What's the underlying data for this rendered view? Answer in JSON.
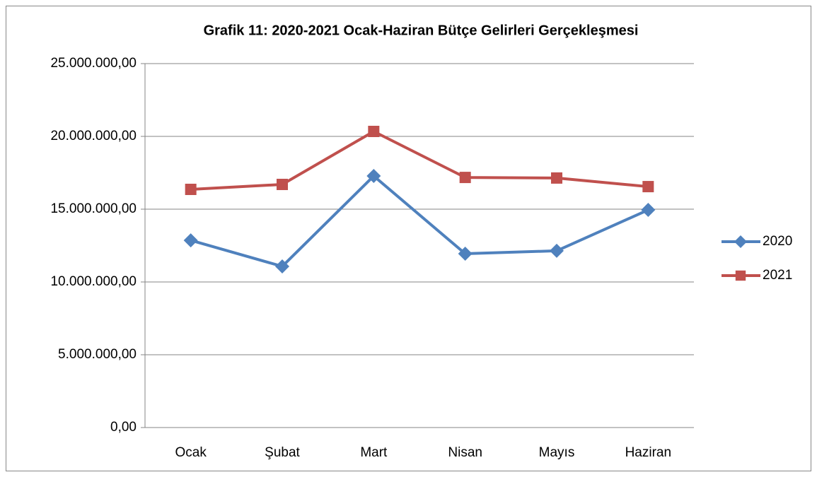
{
  "chart_data": {
    "type": "line",
    "title": "Grafik 11: 2020-2021 Ocak-Haziran Bütçe Gelirleri Gerçekleşmesi",
    "categories": [
      "Ocak",
      "Şubat",
      "Mart",
      "Nisan",
      "Mayıs",
      "Haziran"
    ],
    "series": [
      {
        "name": "2020",
        "color": "#4f81bd",
        "marker": "diamond",
        "values": [
          12860000,
          11070000,
          17280000,
          11940000,
          12140000,
          14950000
        ]
      },
      {
        "name": "2021",
        "color": "#c0504d",
        "marker": "square",
        "values": [
          16360000,
          16700000,
          20340000,
          17180000,
          17140000,
          16550000
        ]
      }
    ],
    "ylim": [
      0,
      25000000
    ],
    "yticks": [
      {
        "value": 0,
        "label": "0,00"
      },
      {
        "value": 5000000,
        "label": "5.000.000,00"
      },
      {
        "value": 10000000,
        "label": "10.000.000,00"
      },
      {
        "value": 15000000,
        "label": "15.000.000,00"
      },
      {
        "value": 20000000,
        "label": "20.000.000,00"
      },
      {
        "value": 25000000,
        "label": "25.000.000,00"
      }
    ],
    "grid": true,
    "legend": "right"
  }
}
